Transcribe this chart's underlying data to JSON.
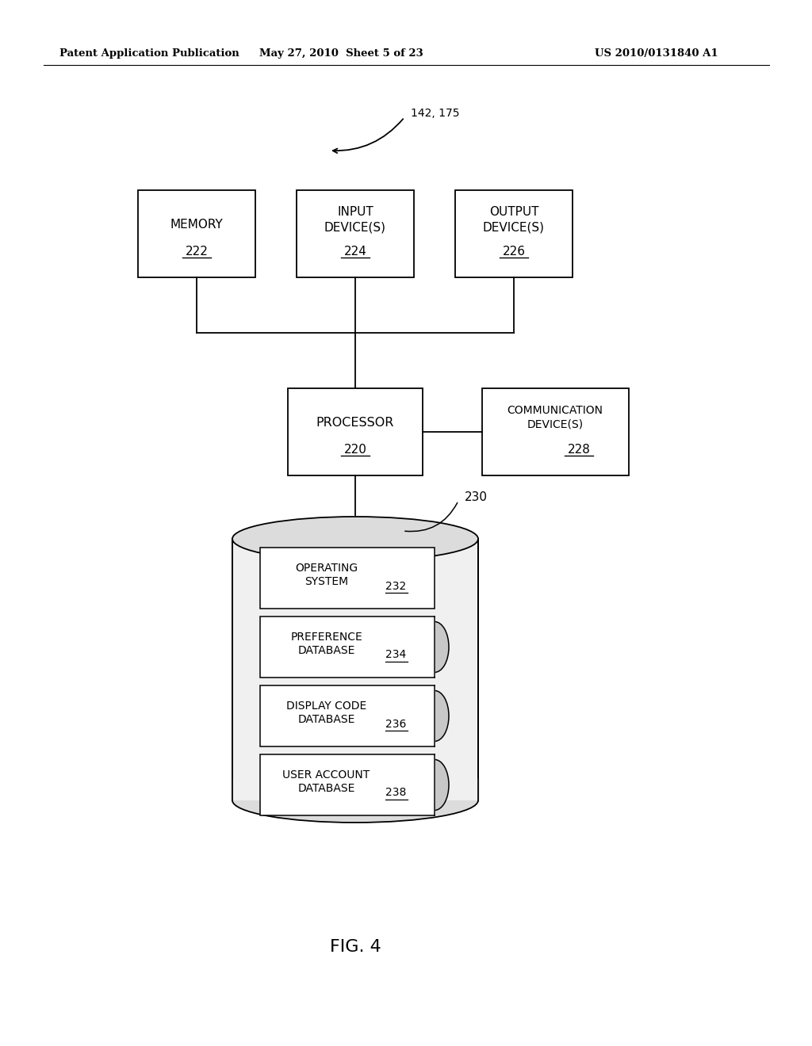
{
  "bg_color": "#ffffff",
  "header_left": "Patent Application Publication",
  "header_mid": "May 27, 2010  Sheet 5 of 23",
  "header_right": "US 2010/0131840 A1",
  "fig_label": "FIG. 4",
  "arrow_label": "142, 175",
  "db_label": "230"
}
